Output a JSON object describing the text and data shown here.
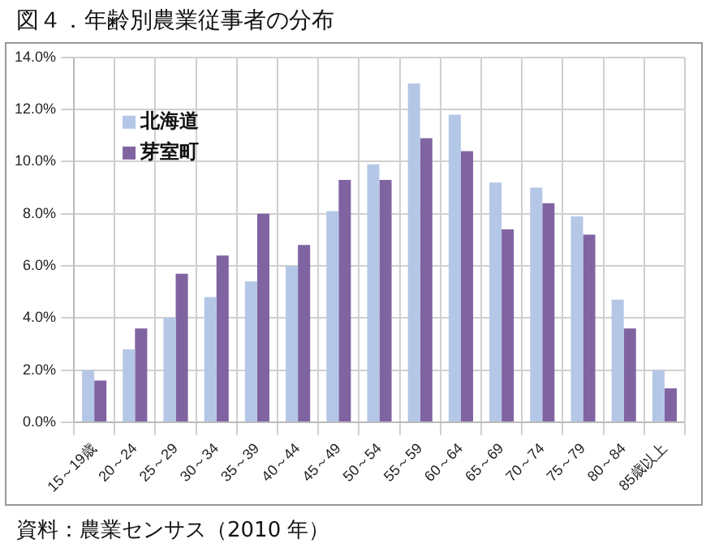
{
  "chart_data": {
    "type": "bar",
    "title": "図４．年齢別農業従事者の分布",
    "annotations": [
      "資料：農業センサス（2010 年）"
    ],
    "categories": [
      "15～19歳",
      "20～24",
      "25～29",
      "30～34",
      "35～39",
      "40～44",
      "45～49",
      "50～54",
      "55～59",
      "60～64",
      "65～69",
      "70～74",
      "75～79",
      "80～84",
      "85歳以上"
    ],
    "series": [
      {
        "name": "北海道",
        "color": "#b4c7e7",
        "values": [
          2.0,
          2.8,
          4.0,
          4.8,
          5.4,
          6.0,
          8.1,
          9.9,
          13.0,
          11.8,
          9.2,
          9.0,
          7.9,
          4.7,
          2.0
        ]
      },
      {
        "name": "芽室町",
        "color": "#8064a2",
        "values": [
          1.6,
          3.6,
          5.7,
          6.4,
          8.0,
          6.8,
          9.3,
          9.3,
          10.9,
          10.4,
          7.4,
          8.4,
          7.2,
          3.6,
          1.3
        ]
      }
    ],
    "ylim": [
      0,
      14
    ],
    "yticks": [
      {
        "value": 0,
        "label": "0.0%"
      },
      {
        "value": 2,
        "label": "2.0%"
      },
      {
        "value": 4,
        "label": "4.0%"
      },
      {
        "value": 6,
        "label": "6.0%"
      },
      {
        "value": 8,
        "label": "8.0%"
      },
      {
        "value": 10,
        "label": "10.0%"
      },
      {
        "value": 12,
        "label": "12.0%"
      },
      {
        "value": 14,
        "label": "14.0%"
      }
    ],
    "grid": true,
    "legend": "top left"
  }
}
